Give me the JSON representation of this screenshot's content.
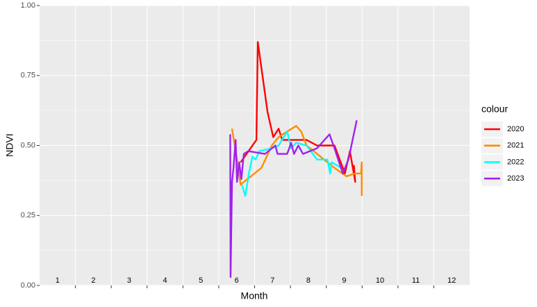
{
  "chart_data": {
    "type": "line",
    "x_label": "Month",
    "y_label": "NDVI",
    "legend_title": "colour",
    "xlim": [
      0.5,
      12.5
    ],
    "xticks": [
      1,
      2,
      3,
      4,
      5,
      6,
      7,
      8,
      9,
      10,
      11,
      12
    ],
    "ylim": [
      0,
      1
    ],
    "yticks": [
      {
        "value": 0,
        "label": "0.00"
      },
      0.25,
      {
        "value": 0.5,
        "label": "0.50"
      },
      0.75,
      {
        "value": 1,
        "label": "1.00"
      }
    ],
    "grid": true,
    "legend": "right",
    "series": [
      {
        "name": "2020",
        "color": "#ff0000",
        "x": [
          6.11,
          6.55,
          6.59,
          6.86,
          7.02,
          7.17,
          7.27,
          7.95,
          8.24,
          8.73,
          9.02,
          9.16,
          9.31,
          9.27
        ],
        "values": [
          0.44,
          0.52,
          0.87,
          0.62,
          0.53,
          0.56,
          0.52,
          0.52,
          0.5,
          0.5,
          0.4,
          0.48,
          0.37,
          0.43
        ]
      },
      {
        "name": "2021",
        "color": "#ff8c00",
        "x": [
          5.87,
          6.01,
          6.11,
          6.2,
          6.4,
          6.69,
          6.98,
          7.17,
          7.41,
          7.66,
          7.8,
          7.95,
          8.15,
          8.34,
          8.53,
          8.73,
          9.06,
          9.31,
          9.47,
          9.49,
          9.49
        ],
        "values": [
          0.56,
          0.45,
          0.36,
          0.37,
          0.39,
          0.42,
          0.5,
          0.53,
          0.55,
          0.57,
          0.55,
          0.5,
          0.48,
          0.46,
          0.44,
          0.42,
          0.39,
          0.4,
          0.4,
          0.44,
          0.32
        ]
      },
      {
        "name": "2022",
        "color": "#00ffff",
        "x": [
          6.15,
          6.24,
          6.34,
          6.44,
          6.53,
          6.63,
          6.98,
          7.17,
          7.41,
          7.52,
          7.66,
          7.95,
          8.24,
          8.53,
          8.61,
          8.65,
          8.92
        ],
        "values": [
          0.36,
          0.32,
          0.4,
          0.46,
          0.45,
          0.48,
          0.49,
          0.5,
          0.55,
          0.49,
          0.51,
          0.5,
          0.45,
          0.45,
          0.4,
          0.44,
          0.42
        ]
      },
      {
        "name": "2023",
        "color": "#a020f0",
        "x": [
          5.82,
          5.83,
          5.87,
          5.91,
          5.97,
          6.01,
          6.07,
          6.13,
          6.2,
          6.32,
          6.79,
          7.08,
          7.14,
          7.41,
          7.52,
          7.6,
          7.72,
          7.85,
          8.24,
          8.59,
          8.73,
          8.96,
          9.12,
          9.35
        ],
        "values": [
          0.54,
          0.03,
          0.37,
          0.42,
          0.52,
          0.37,
          0.44,
          0.38,
          0.47,
          0.48,
          0.47,
          0.5,
          0.47,
          0.47,
          0.51,
          0.47,
          0.5,
          0.47,
          0.49,
          0.54,
          0.49,
          0.4,
          0.45,
          0.59
        ]
      }
    ]
  }
}
